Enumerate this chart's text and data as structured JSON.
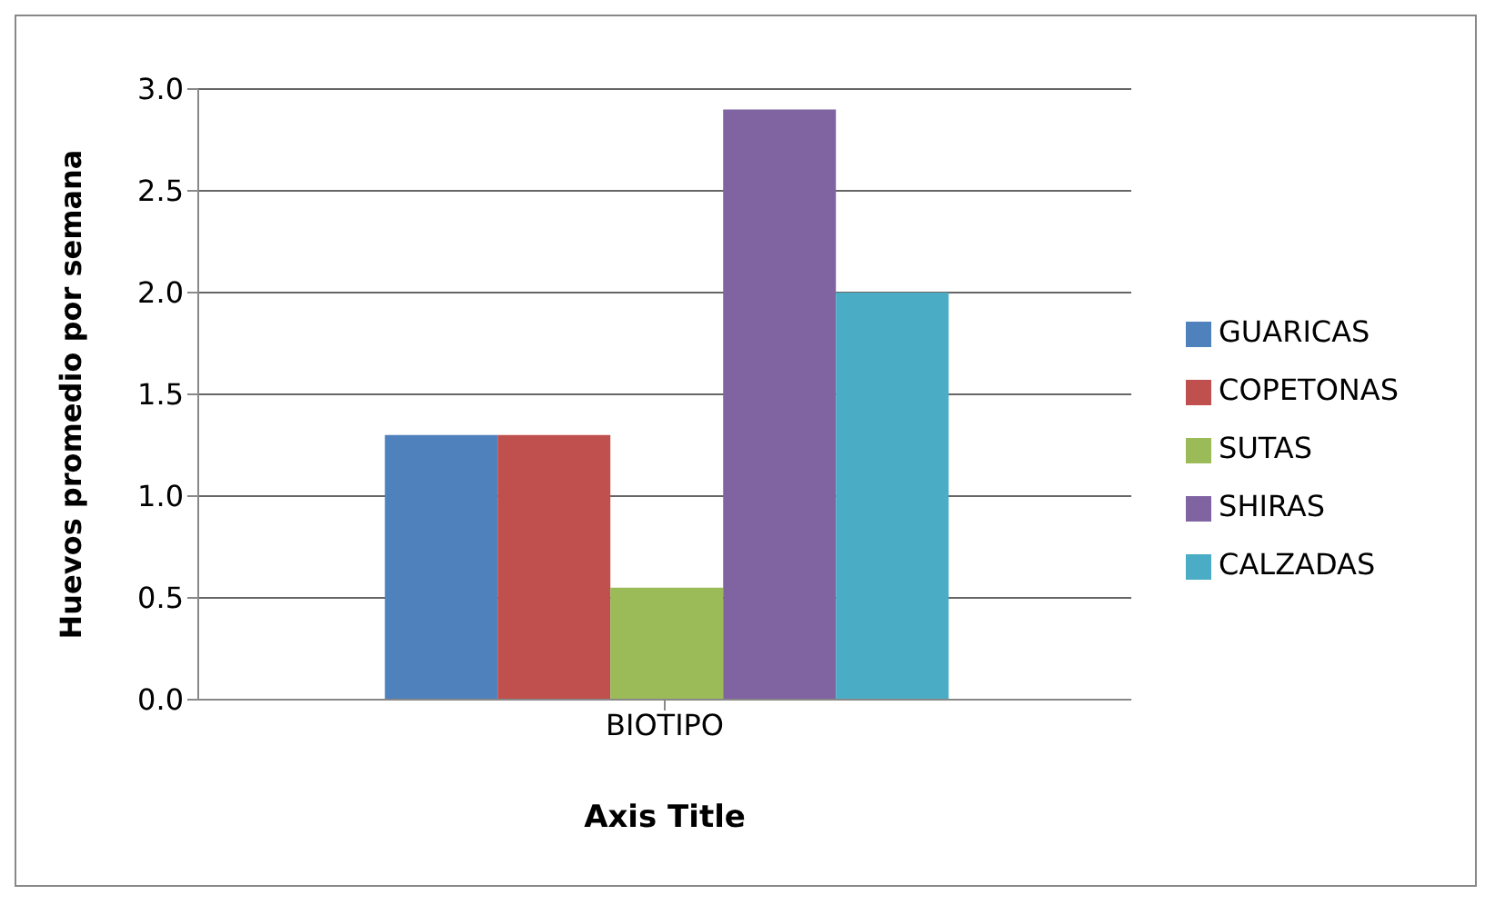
{
  "chart_data": {
    "type": "bar",
    "xlabel": "Axis Title",
    "ylabel": "Huevos promedio por semana",
    "categories": [
      "BIOTIPO"
    ],
    "series": [
      {
        "name": "GUARICAS",
        "color": "#4f81bd",
        "values": [
          1.3
        ]
      },
      {
        "name": "COPETONAS",
        "color": "#c0504d",
        "values": [
          1.3
        ]
      },
      {
        "name": "SUTAS",
        "color": "#9bbb59",
        "values": [
          0.55
        ]
      },
      {
        "name": "SHIRAS",
        "color": "#8064a2",
        "values": [
          2.9
        ]
      },
      {
        "name": "CALZADAS",
        "color": "#4bacc6",
        "values": [
          2.0
        ]
      }
    ],
    "ylim": [
      0,
      3
    ],
    "yticks": [
      {
        "value": 0,
        "label": "0.0"
      },
      0.5,
      {
        "value": 1,
        "label": "1.0"
      },
      1.5,
      {
        "value": 2,
        "label": "2.0"
      },
      2.5,
      {
        "value": 3,
        "label": "3.0"
      }
    ],
    "grid": "y",
    "legend": "right"
  }
}
